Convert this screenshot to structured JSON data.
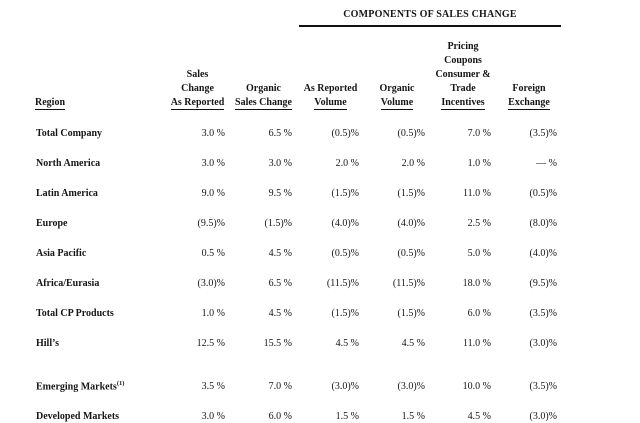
{
  "title": "COMPONENTS OF SALES CHANGE",
  "table": {
    "region_header": "Region",
    "columns": [
      {
        "name": "sales-change-as-reported",
        "lines": [
          "Sales",
          "Change",
          "As Reported"
        ]
      },
      {
        "name": "organic-sales-change",
        "lines": [
          "Organic",
          "Sales Change"
        ]
      },
      {
        "name": "as-reported-volume",
        "lines": [
          "As Reported",
          "Volume"
        ]
      },
      {
        "name": "organic-volume",
        "lines": [
          "Organic",
          "Volume"
        ]
      },
      {
        "name": "pricing-coupons-consumer-trade-incentives",
        "lines": [
          "Pricing",
          "Coupons",
          "Consumer &",
          "Trade",
          "Incentives"
        ]
      },
      {
        "name": "foreign-exchange",
        "lines": [
          "Foreign",
          "Exchange"
        ]
      }
    ],
    "rows": [
      {
        "label": "Total Company",
        "values": [
          "3.0 %",
          "6.5 %",
          "(0.5)%",
          "(0.5)%",
          "7.0 %",
          "(3.5)%"
        ]
      },
      {
        "label": "North America",
        "values": [
          "3.0 %",
          "3.0 %",
          "2.0 %",
          "2.0 %",
          "1.0 %",
          "— %"
        ]
      },
      {
        "label": "Latin America",
        "values": [
          "9.0 %",
          "9.5 %",
          "(1.5)%",
          "(1.5)%",
          "11.0 %",
          "(0.5)%"
        ]
      },
      {
        "label": "Europe",
        "values": [
          "(9.5)%",
          "(1.5)%",
          "(4.0)%",
          "(4.0)%",
          "2.5 %",
          "(8.0)%"
        ]
      },
      {
        "label": "Asia Pacific",
        "values": [
          "0.5 %",
          "4.5 %",
          "(0.5)%",
          "(0.5)%",
          "5.0 %",
          "(4.0)%"
        ]
      },
      {
        "label": "Africa/Eurasia",
        "values": [
          "(3.0)%",
          "6.5 %",
          "(11.5)%",
          "(11.5)%",
          "18.0 %",
          "(9.5)%"
        ]
      },
      {
        "label": "Total CP Products",
        "values": [
          "1.0 %",
          "4.5 %",
          "(1.5)%",
          "(1.5)%",
          "6.0 %",
          "(3.5)%"
        ]
      },
      {
        "label": "Hill’s",
        "values": [
          "12.5 %",
          "15.5 %",
          "4.5 %",
          "4.5 %",
          "11.0 %",
          "(3.0)%"
        ]
      },
      {
        "label": "Emerging Markets",
        "superscript": "(1)",
        "gap_before": true,
        "values": [
          "3.5 %",
          "7.0 %",
          "(3.0)%",
          "(3.0)%",
          "10.0 %",
          "(3.5)%"
        ]
      },
      {
        "label": "Developed Markets",
        "values": [
          "3.0 %",
          "6.0 %",
          "1.5 %",
          "1.5 %",
          "4.5 %",
          "(3.0)%"
        ]
      }
    ]
  },
  "colors": {
    "text": "#161616",
    "rule": "#121212",
    "background": "#ffffff"
  }
}
